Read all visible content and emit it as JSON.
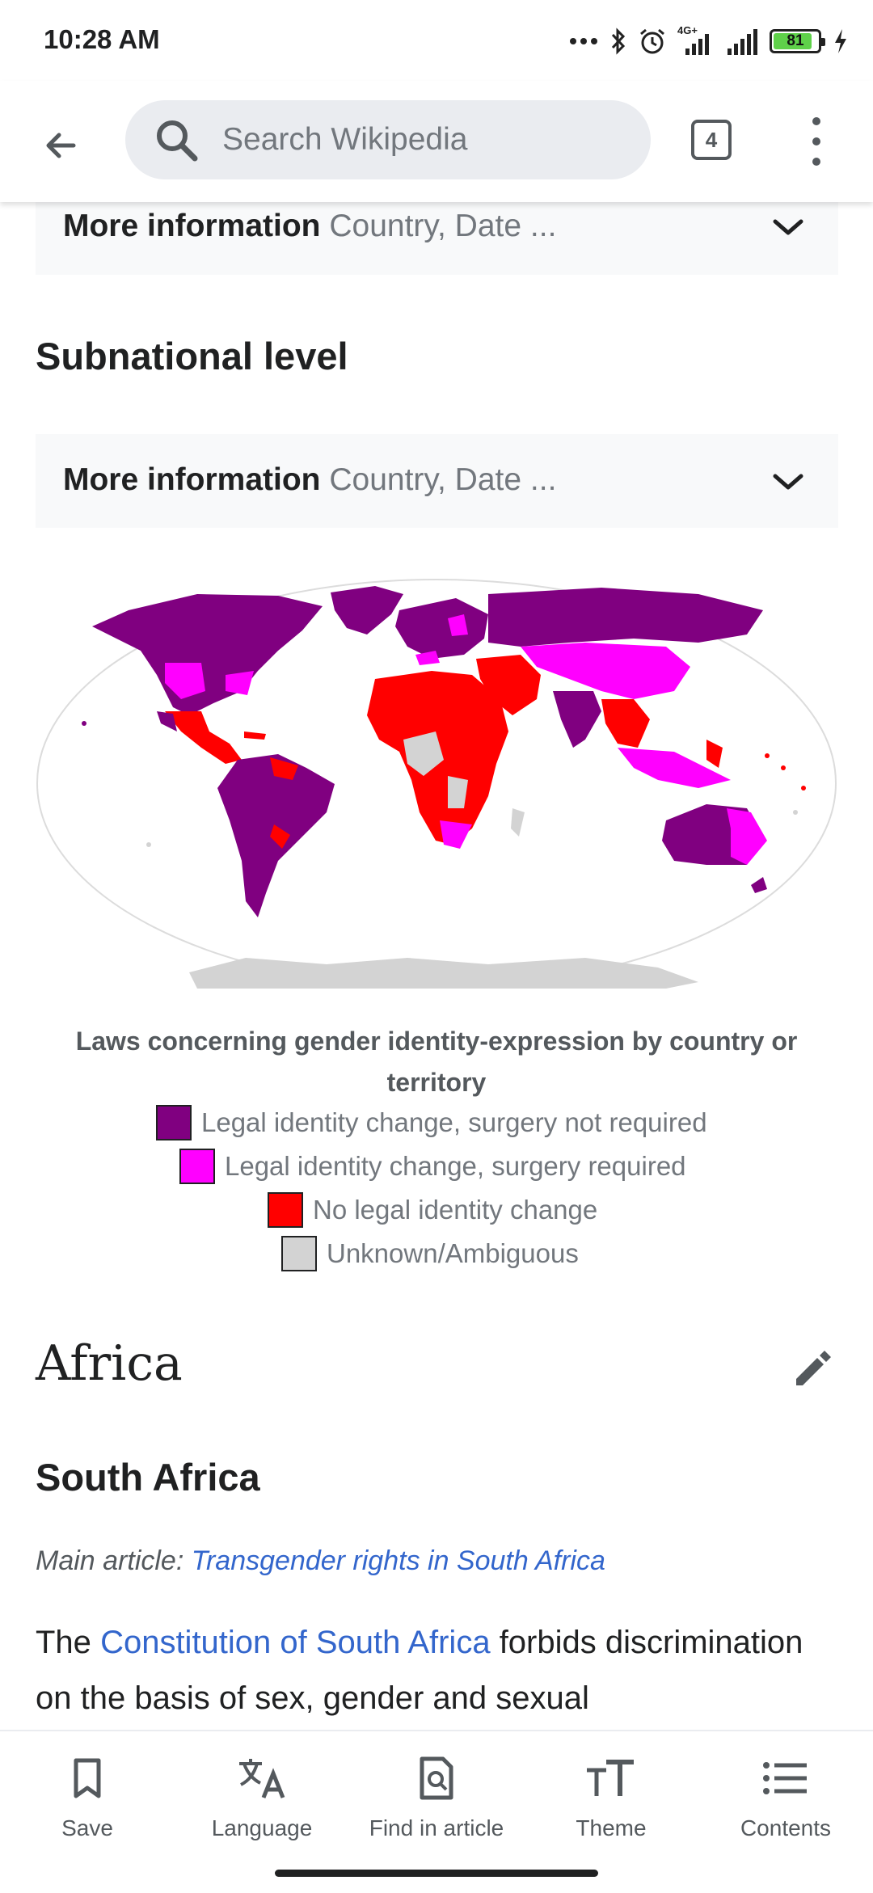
{
  "status_bar": {
    "time": "10:28 AM",
    "battery": "81",
    "network": "4G+",
    "battery_color": "#5fd14a"
  },
  "app_bar": {
    "search_placeholder": "Search Wikipedia",
    "tab_count": "4",
    "icons": [
      "arrow-left-icon",
      "search-icon",
      "tabs-icon",
      "overflow-menu-icon"
    ]
  },
  "content": {
    "collapsible_1": {
      "bold": "More information",
      "rest": "Country, Date ..."
    },
    "subnational_heading": "Subnational level",
    "collapsible_2": {
      "bold": "More information",
      "rest": "Country, Date ..."
    },
    "map_caption": "Laws concerning gender identity-expression by country or territory",
    "legend": [
      {
        "label": "Legal identity change, surgery not required",
        "color": "#800080"
      },
      {
        "label": "Legal identity change, surgery required",
        "color": "#ff00ff"
      },
      {
        "label": "No legal identity change",
        "color": "#ff0000"
      },
      {
        "label": "Unknown/Ambiguous",
        "color": "#d3d3d3"
      }
    ],
    "section_heading": "Africa",
    "subsection_heading": "South Africa",
    "hatnote": {
      "prefix": "Main article:",
      "link": "Transgender rights in South Africa"
    },
    "paragraph": {
      "before": "The",
      "link": "Constitution of South Africa",
      "after": "forbids discrimination on the basis of sex, gender and sexual"
    }
  },
  "bottom_bar": [
    {
      "label": "Save",
      "icon": "bookmark-icon"
    },
    {
      "label": "Language",
      "icon": "translate-icon"
    },
    {
      "label": "Find in article",
      "icon": "find-in-page-icon"
    },
    {
      "label": "Theme",
      "icon": "text-size-icon"
    },
    {
      "label": "Contents",
      "icon": "list-icon"
    }
  ]
}
